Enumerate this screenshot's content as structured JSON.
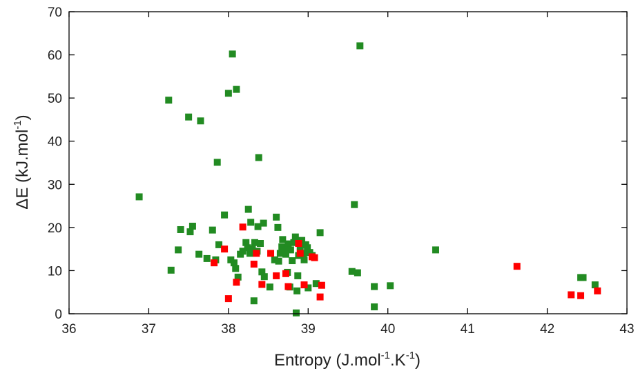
{
  "chart_data": {
    "type": "scatter",
    "title": "",
    "xlabel": "Entropy (J.mol",
    "xlabel_sup1": "-1",
    "xlabel_mid": ".K",
    "xlabel_sup2": "-1",
    "xlabel_end": ")",
    "ylabel": "ΔE (kJ.mol",
    "ylabel_sup": "-1",
    "ylabel_end": ")",
    "xlim": [
      36,
      43
    ],
    "ylim": [
      0,
      70
    ],
    "xticks": [
      "36",
      "37",
      "38",
      "39",
      "40",
      "41",
      "42",
      "43"
    ],
    "yticks": [
      "0",
      "10",
      "20",
      "30",
      "40",
      "50",
      "60",
      "70"
    ],
    "grid": false,
    "legend": "none",
    "series": [
      {
        "color": "#228B22",
        "marker": "square",
        "points": [
          [
            36.88,
            27.1
          ],
          [
            37.25,
            49.5
          ],
          [
            37.28,
            10.1
          ],
          [
            37.37,
            14.8
          ],
          [
            37.4,
            19.5
          ],
          [
            37.5,
            45.6
          ],
          [
            37.52,
            19.0
          ],
          [
            37.55,
            20.3
          ],
          [
            37.63,
            13.8
          ],
          [
            37.65,
            44.7
          ],
          [
            37.73,
            12.8
          ],
          [
            37.8,
            19.4
          ],
          [
            37.84,
            12.5
          ],
          [
            37.86,
            35.1
          ],
          [
            37.88,
            16.0
          ],
          [
            37.95,
            22.9
          ],
          [
            38.0,
            51.1
          ],
          [
            38.03,
            12.5
          ],
          [
            38.05,
            60.2
          ],
          [
            38.07,
            11.8
          ],
          [
            38.09,
            10.5
          ],
          [
            38.1,
            52.0
          ],
          [
            38.12,
            8.5
          ],
          [
            38.15,
            13.8
          ],
          [
            38.18,
            14.5
          ],
          [
            38.22,
            16.5
          ],
          [
            38.24,
            15.3
          ],
          [
            38.25,
            24.2
          ],
          [
            38.27,
            14.0
          ],
          [
            38.28,
            21.2
          ],
          [
            38.3,
            15.0
          ],
          [
            38.32,
            3.0
          ],
          [
            38.33,
            16.5
          ],
          [
            38.36,
            14.5
          ],
          [
            38.37,
            20.2
          ],
          [
            38.38,
            36.2
          ],
          [
            38.4,
            16.3
          ],
          [
            38.42,
            9.7
          ],
          [
            38.44,
            21.0
          ],
          [
            38.45,
            8.6
          ],
          [
            38.52,
            6.2
          ],
          [
            38.58,
            12.5
          ],
          [
            38.6,
            22.4
          ],
          [
            38.62,
            20.0
          ],
          [
            38.63,
            12.2
          ],
          [
            38.65,
            14.0
          ],
          [
            38.67,
            15.5
          ],
          [
            38.68,
            17.2
          ],
          [
            38.7,
            15.3
          ],
          [
            38.72,
            13.8
          ],
          [
            38.74,
            9.6
          ],
          [
            38.75,
            16.2
          ],
          [
            38.77,
            6.2
          ],
          [
            38.78,
            14.8
          ],
          [
            38.8,
            12.3
          ],
          [
            38.82,
            16.5
          ],
          [
            38.84,
            17.8
          ],
          [
            38.85,
            0.2
          ],
          [
            38.86,
            5.3
          ],
          [
            38.87,
            8.8
          ],
          [
            38.88,
            13.5
          ],
          [
            38.9,
            15.5
          ],
          [
            38.92,
            17.0
          ],
          [
            38.94,
            14.0
          ],
          [
            38.95,
            12.5
          ],
          [
            38.97,
            16.0
          ],
          [
            38.99,
            15.3
          ],
          [
            39.0,
            6.0
          ],
          [
            39.02,
            14.2
          ],
          [
            39.05,
            13.5
          ],
          [
            39.1,
            7.0
          ],
          [
            39.15,
            18.8
          ],
          [
            39.55,
            9.8
          ],
          [
            39.58,
            25.3
          ],
          [
            39.62,
            9.5
          ],
          [
            39.65,
            62.1
          ],
          [
            39.83,
            1.6
          ],
          [
            39.83,
            6.3
          ],
          [
            40.03,
            6.5
          ],
          [
            40.6,
            14.8
          ],
          [
            42.42,
            8.4
          ],
          [
            42.45,
            8.4
          ],
          [
            42.6,
            6.7
          ]
        ]
      },
      {
        "color": "#FF0000",
        "marker": "square",
        "points": [
          [
            37.82,
            11.8
          ],
          [
            37.95,
            15.0
          ],
          [
            38.0,
            3.5
          ],
          [
            38.1,
            7.3
          ],
          [
            38.18,
            20.1
          ],
          [
            38.32,
            11.5
          ],
          [
            38.35,
            14.0
          ],
          [
            38.42,
            6.8
          ],
          [
            38.53,
            14.0
          ],
          [
            38.6,
            8.8
          ],
          [
            38.72,
            9.3
          ],
          [
            38.75,
            6.3
          ],
          [
            38.88,
            16.3
          ],
          [
            38.9,
            14.0
          ],
          [
            38.95,
            6.7
          ],
          [
            39.05,
            13.2
          ],
          [
            39.08,
            13.0
          ],
          [
            39.15,
            3.9
          ],
          [
            39.17,
            6.6
          ],
          [
            41.62,
            11.0
          ],
          [
            42.3,
            4.4
          ],
          [
            42.42,
            4.2
          ],
          [
            42.63,
            5.3
          ]
        ]
      }
    ]
  }
}
